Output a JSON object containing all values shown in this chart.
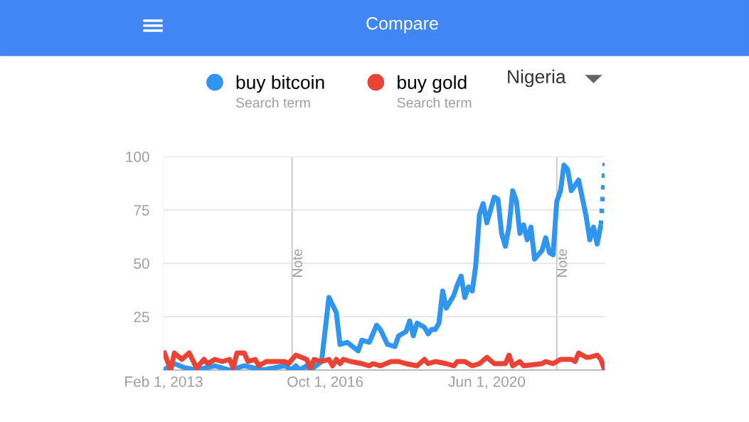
{
  "chart_data": {
    "type": "line",
    "title": "Compare",
    "x": [
      "2013-02",
      "2013-05",
      "2013-08",
      "2013-11",
      "2014-04",
      "2014-08",
      "2014-12",
      "2015-05",
      "2015-11",
      "2016-01",
      "2016-02",
      "2016-03",
      "2016-05",
      "2016-06",
      "2016-09",
      "2016-11",
      "2017-01",
      "2017-02",
      "2017-04",
      "2017-07",
      "2017-08",
      "2017-10",
      "2017-12",
      "2018-01",
      "2018-03",
      "2018-05",
      "2018-06",
      "2018-08",
      "2018-09",
      "2018-10",
      "2018-11",
      "2019-01",
      "2019-02",
      "2019-03",
      "2019-04",
      "2019-05",
      "2019-06",
      "2019-07",
      "2019-09",
      "2019-10",
      "2019-11",
      "2019-12",
      "2020-01",
      "2020-02",
      "2020-03",
      "2020-04",
      "2020-05",
      "2020-06",
      "2020-08",
      "2020-09",
      "2020-10",
      "2020-11",
      "2020-12",
      "2021-01",
      "2021-02",
      "2021-03",
      "2021-04",
      "2021-05",
      "2021-06",
      "2021-07",
      "2021-09",
      "2021-10",
      "2021-11",
      "2021-12",
      "2022-01",
      "2022-02",
      "2022-03",
      "2022-04",
      "2022-05",
      "2022-07",
      "2022-09",
      "2022-10",
      "2022-11",
      "2022-12",
      "2023-01"
    ],
    "series": [
      {
        "name": "buy bitcoin",
        "color": "#2f95ee",
        "values": [
          0,
          3,
          1,
          0,
          2,
          0,
          2,
          0,
          2,
          0,
          2,
          0,
          2,
          0,
          4,
          34,
          27,
          12,
          13,
          9,
          14,
          13,
          21,
          19,
          12,
          11,
          16,
          18,
          23,
          16,
          22,
          20,
          17,
          19,
          19,
          22,
          37,
          29,
          35,
          40,
          44,
          34,
          39,
          37,
          49,
          73,
          78,
          69,
          81,
          80,
          64,
          58,
          67,
          84,
          79,
          64,
          68,
          61,
          67,
          52,
          56,
          62,
          55,
          54,
          79,
          84,
          96,
          94,
          84,
          89,
          72,
          61,
          67,
          59,
          68
        ]
      },
      {
        "name": "buy gold",
        "color": "#ea4335",
        "x": [
          "2013-02",
          "2013-04",
          "2013-05",
          "2013-07",
          "2013-09",
          "2013-11",
          "2014-01",
          "2014-02",
          "2014-04",
          "2014-06",
          "2014-08",
          "2014-09",
          "2014-10",
          "2014-12",
          "2015-01",
          "2015-03",
          "2015-04",
          "2015-06",
          "2015-09",
          "2015-11",
          "2015-12",
          "2016-02",
          "2016-05",
          "2016-06",
          "2016-07",
          "2016-09",
          "2016-11",
          "2016-12",
          "2017-01",
          "2017-02",
          "2017-03",
          "2017-05",
          "2017-08",
          "2017-10",
          "2017-11",
          "2018-01",
          "2018-04",
          "2018-06",
          "2018-08",
          "2018-11",
          "2019-01",
          "2019-02",
          "2019-04",
          "2019-07",
          "2019-09",
          "2019-10",
          "2019-12",
          "2020-02",
          "2020-04",
          "2020-06",
          "2020-08",
          "2020-11",
          "2020-12",
          "2021-01",
          "2021-03",
          "2021-04",
          "2021-09",
          "2021-10",
          "2021-12",
          "2022-02",
          "2022-04",
          "2022-05",
          "2022-06",
          "2022-07",
          "2022-09",
          "2022-10",
          "2022-12",
          "2023-01",
          "2023-02"
        ],
        "values": [
          9,
          0,
          8,
          5,
          8,
          1,
          5,
          3,
          5,
          4,
          5,
          1,
          8,
          8,
          4,
          5,
          2,
          4,
          4,
          4,
          3,
          7,
          5,
          1,
          5,
          4,
          5,
          2,
          5,
          3,
          5,
          4,
          3,
          2,
          3,
          2,
          4,
          4,
          3,
          2,
          5,
          3,
          4,
          3,
          2,
          4,
          4,
          2,
          3,
          6,
          3,
          3,
          7,
          2,
          4,
          2,
          3,
          4,
          3,
          5,
          5,
          5,
          4,
          8,
          6,
          6,
          7,
          5,
          0
        ]
      },
      {
        "color": "#2f95ee",
        "line_style": "dotted",
        "x": [
          "2023-01",
          "2023-02"
        ],
        "values": [
          68,
          97
        ]
      }
    ],
    "xlim": [
      "2013-02",
      "2023-02"
    ],
    "xticks": [
      {
        "value": "2013-02-01",
        "label": "Feb 1, 2013"
      },
      {
        "value": "2016-10-01",
        "label": "Oct 1, 2016"
      },
      {
        "value": "2020-06-01",
        "label": "Jun 1, 2020"
      }
    ],
    "ylim": [
      0,
      100
    ],
    "yticks": [
      25,
      50,
      75,
      100
    ],
    "grid": "y",
    "legend": "top",
    "line_style": "solid",
    "marker": "none",
    "ref_lines": [
      {
        "axis": "x",
        "value": "2016-01",
        "label": "Note",
        "color": "#cccccc"
      },
      {
        "axis": "x",
        "value": "2022-01",
        "label": "Note",
        "color": "#cccccc"
      }
    ],
    "annotations": [
      "Search term",
      "Search term",
      "Nigeria"
    ]
  }
}
